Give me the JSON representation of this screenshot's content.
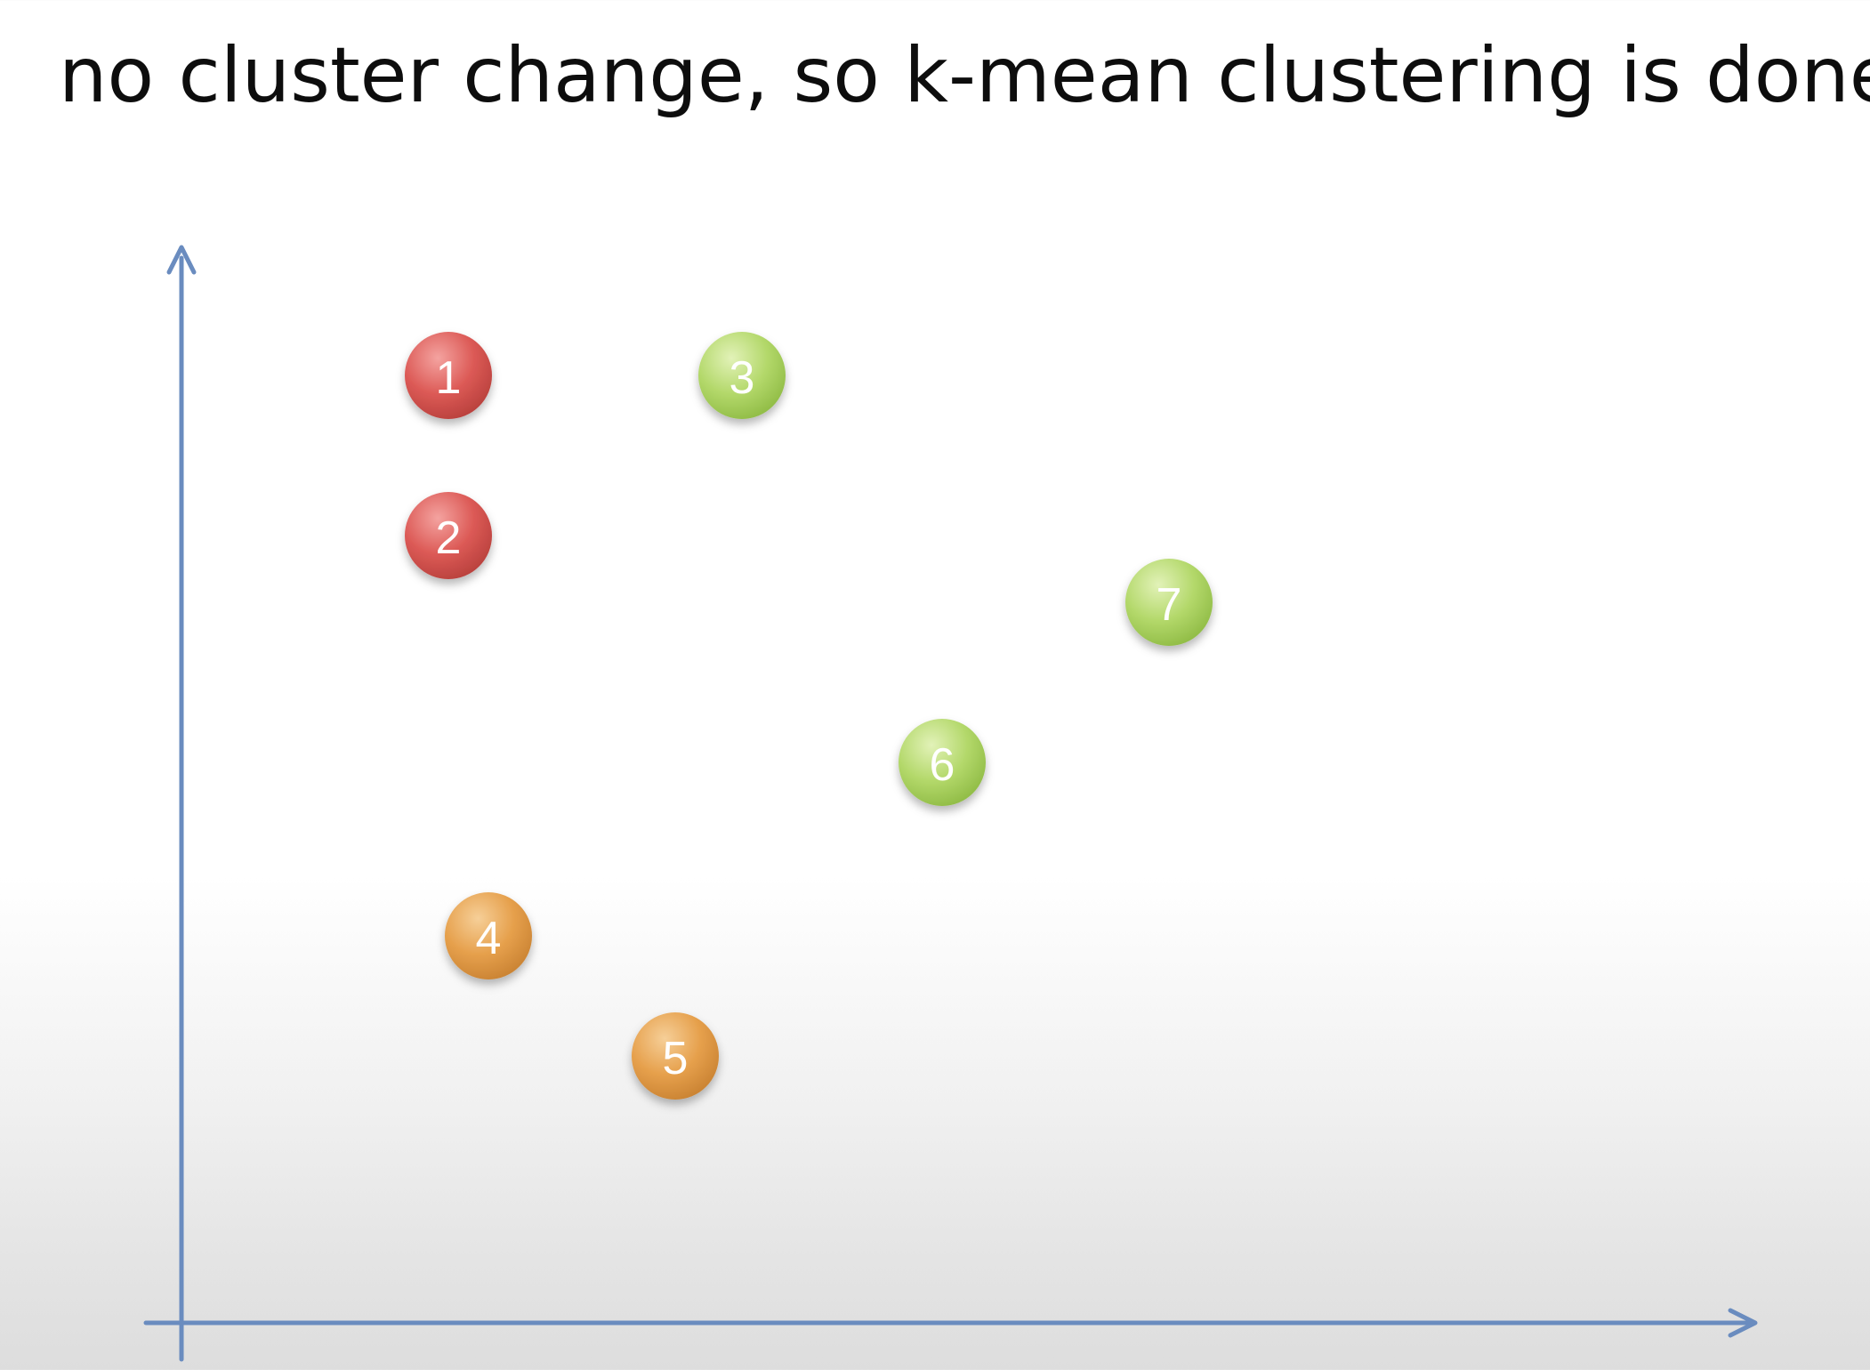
{
  "slide": {
    "title": "no cluster change, so k-mean clustering is done!"
  },
  "colors": {
    "axis": "#6a8cbf",
    "cluster_red": "#d9534f",
    "cluster_green": "#a9d05c",
    "cluster_orange": "#e29a45"
  },
  "points": [
    {
      "label": "1",
      "cluster": "red",
      "x": 2.0,
      "y": 7.1
    },
    {
      "label": "2",
      "cluster": "red",
      "x": 2.0,
      "y": 5.9
    },
    {
      "label": "3",
      "cluster": "green",
      "x": 4.2,
      "y": 7.1
    },
    {
      "label": "4",
      "cluster": "orange",
      "x": 2.3,
      "y": 2.9
    },
    {
      "label": "5",
      "cluster": "orange",
      "x": 3.7,
      "y": 2.0
    },
    {
      "label": "6",
      "cluster": "green",
      "x": 5.7,
      "y": 4.2
    },
    {
      "label": "7",
      "cluster": "green",
      "x": 7.4,
      "y": 5.4
    }
  ]
}
